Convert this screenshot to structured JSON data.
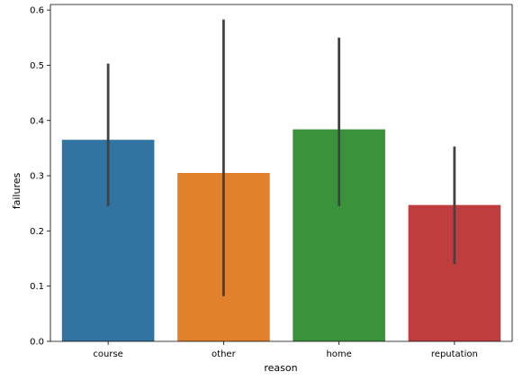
{
  "chart_data": {
    "type": "bar",
    "title": "",
    "xlabel": "reason",
    "ylabel": "failures",
    "categories": [
      "course",
      "other",
      "home",
      "reputation"
    ],
    "values": [
      0.365,
      0.305,
      0.384,
      0.247
    ],
    "error_low": [
      0.245,
      0.082,
      0.245,
      0.14
    ],
    "error_high": [
      0.503,
      0.583,
      0.55,
      0.353
    ],
    "colors": [
      "#3274a1",
      "#e1812c",
      "#3a923a",
      "#c03d3e"
    ],
    "error_color": "#424242",
    "ylim": [
      0,
      0.61
    ],
    "yticks": [
      0.0,
      0.1,
      0.2,
      0.3,
      0.4,
      0.5,
      0.6
    ],
    "ytick_labels": [
      "0.0",
      "0.1",
      "0.2",
      "0.3",
      "0.4",
      "0.5",
      "0.6"
    ],
    "grid": false,
    "legend": "none"
  }
}
